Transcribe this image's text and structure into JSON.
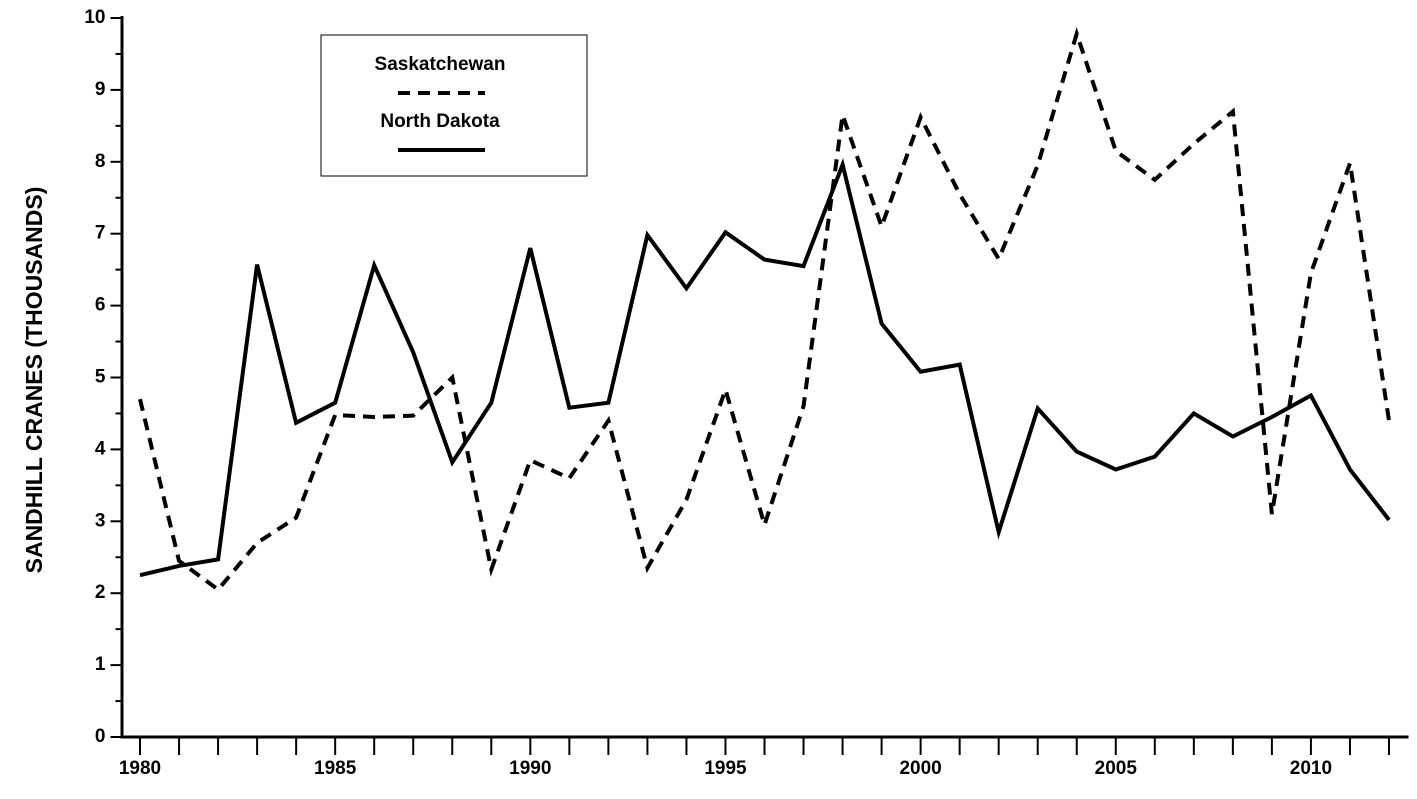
{
  "chart_data": {
    "type": "line",
    "y_label": "SANDHILL CRANES (THOUSANDS)",
    "x": [
      1980,
      1981,
      1982,
      1983,
      1984,
      1985,
      1986,
      1987,
      1988,
      1989,
      1990,
      1991,
      1992,
      1993,
      1994,
      1995,
      1996,
      1997,
      1998,
      1999,
      2000,
      2001,
      2002,
      2003,
      2004,
      2005,
      2006,
      2007,
      2008,
      2009,
      2010,
      2011,
      2012
    ],
    "series": [
      {
        "name": "Saskatchewan",
        "color": "#000000",
        "dash": true,
        "values": [
          4.7,
          2.45,
          2.05,
          2.7,
          3.05,
          4.48,
          4.45,
          4.47,
          5.0,
          2.33,
          3.85,
          3.6,
          4.4,
          2.35,
          3.3,
          4.83,
          2.95,
          4.6,
          8.65,
          7.1,
          8.62,
          7.55,
          6.65,
          7.95,
          9.78,
          8.15,
          7.75,
          8.25,
          8.7,
          3.1,
          6.45,
          7.98,
          4.4
        ]
      },
      {
        "name": "North Dakota",
        "color": "#000000",
        "dash": false,
        "values": [
          2.25,
          2.38,
          2.47,
          6.57,
          4.37,
          4.65,
          6.56,
          5.35,
          3.82,
          4.65,
          6.8,
          4.58,
          4.65,
          6.98,
          6.24,
          7.02,
          6.64,
          6.55,
          7.96,
          5.75,
          5.08,
          5.18,
          2.85,
          4.57,
          3.97,
          3.72,
          3.9,
          4.5,
          4.18,
          4.45,
          4.75,
          3.72,
          3.02
        ]
      }
    ],
    "xlim": [
      1979.5,
      2012.5
    ],
    "xticks": [
      1980,
      1985,
      1990,
      1995,
      2000,
      2005,
      2010
    ],
    "x_minor_ticks": [
      1981,
      1982,
      1983,
      1984,
      1986,
      1987,
      1988,
      1989,
      1991,
      1992,
      1993,
      1994,
      1996,
      1997,
      1998,
      1999,
      2001,
      2002,
      2003,
      2004,
      2006,
      2007,
      2008,
      2009,
      2011,
      2012
    ],
    "ylim": [
      0,
      10
    ],
    "yticks": [
      0,
      1,
      2,
      3,
      4,
      5,
      6,
      7,
      8,
      9,
      10
    ],
    "y_minor_ticks": [
      0.5,
      1.5,
      2.5,
      3.5,
      4.5,
      5.5,
      6.5,
      7.5,
      8.5,
      9.5
    ],
    "grid": false,
    "legend": "upper left"
  }
}
